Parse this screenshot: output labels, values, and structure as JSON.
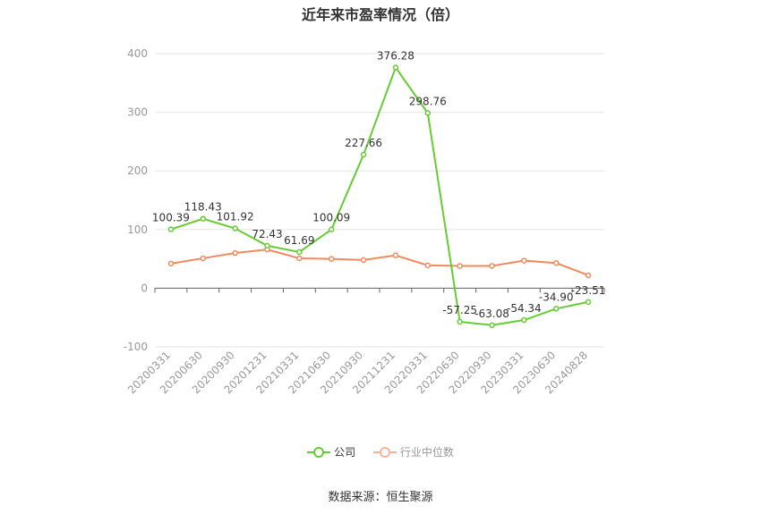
{
  "chart_data": {
    "type": "line",
    "title": "近年来市盈率情况（倍）",
    "categories": [
      "20200331",
      "20200630",
      "20200930",
      "20201231",
      "20210331",
      "20210630",
      "20210930",
      "20211231",
      "20220331",
      "20220630",
      "20220930",
      "20230331",
      "20230630",
      "20240828"
    ],
    "series": [
      {
        "name": "公司",
        "color": "#66cc33",
        "values": [
          100.39,
          118.43,
          101.92,
          72.43,
          61.69,
          100.09,
          227.66,
          376.28,
          298.76,
          -57.25,
          -63.08,
          -54.34,
          -34.9,
          -23.51
        ],
        "labels": [
          "100.39",
          "118.43",
          "101.92",
          "72.43",
          "61.69",
          "100.09",
          "227.66",
          "376.28",
          "298.76",
          "-57.25",
          "-63.08",
          "-54.34",
          "-34.90",
          "-23.51"
        ]
      },
      {
        "name": "行业中位数",
        "color": "#f08a5d",
        "values": [
          42,
          51,
          60,
          66,
          51,
          50,
          48,
          56,
          39,
          38,
          38,
          47,
          43,
          22
        ]
      }
    ],
    "yticks": [
      -100,
      0,
      100,
      200,
      300,
      400
    ],
    "ylim": [
      -100,
      400
    ],
    "grid": true,
    "legend": "bottom"
  },
  "legend": {
    "company": "公司",
    "industry": "行业中位数"
  },
  "source": "数据来源：恒生聚源"
}
